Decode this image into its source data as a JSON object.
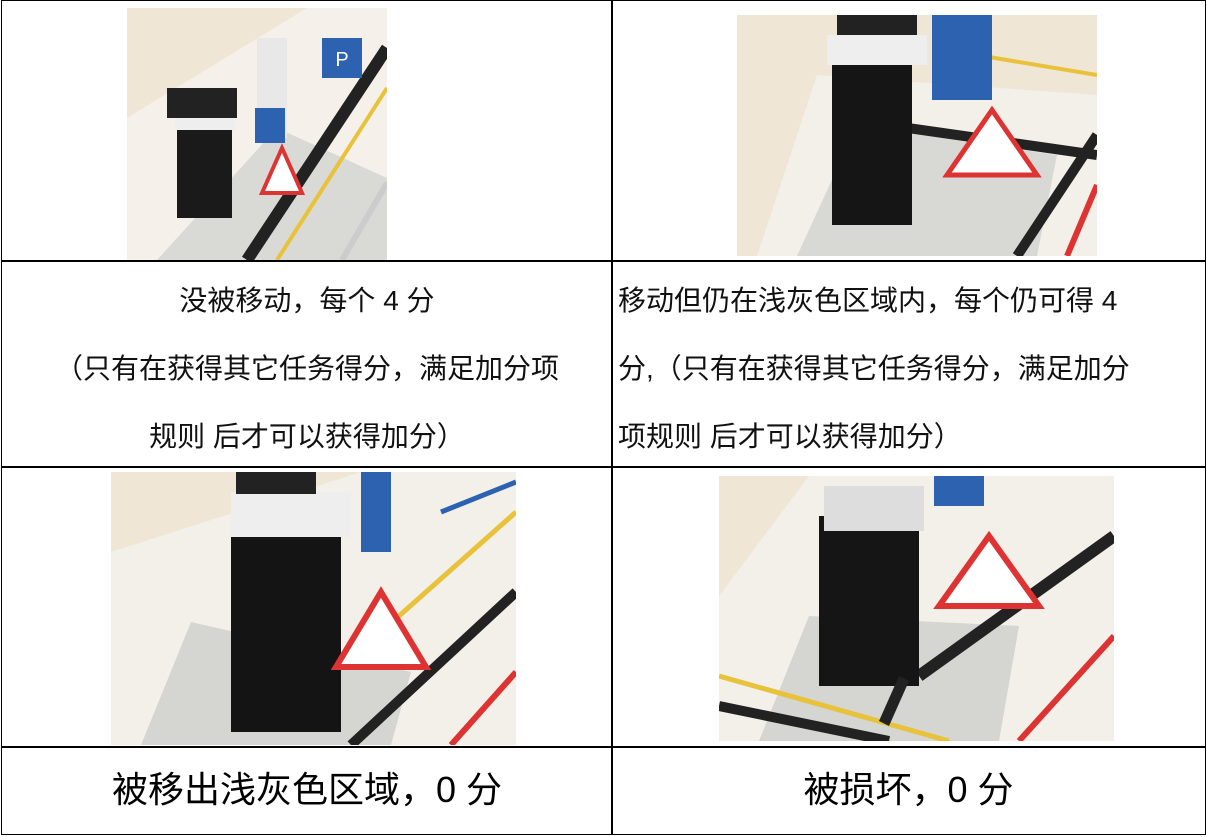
{
  "table": {
    "rows": [
      [
        {
          "lines": [
            "没被移动，每个 4 分",
            "（只有在获得其它任务得分，满足加分项",
            "规则 后才可以获得加分）"
          ]
        },
        {
          "lines": [
            "移动但仍在浅灰色区域内，每个仍可得 4",
            "分,（只有在获得其它任务得分，满足加分",
            "项规则 后才可以获得加分）"
          ]
        }
      ],
      [
        {
          "lines": [
            "被移出浅灰色区域，0 分"
          ]
        },
        {
          "lines": [
            "被损坏，0 分"
          ]
        }
      ]
    ]
  }
}
